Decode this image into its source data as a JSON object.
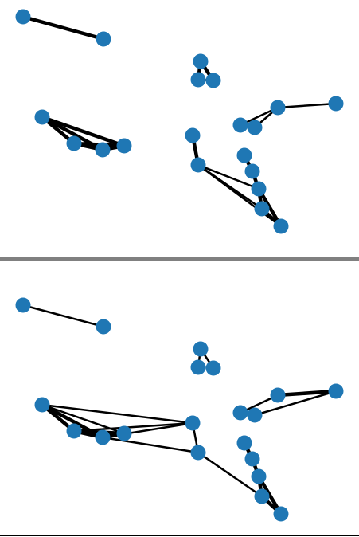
{
  "colors": {
    "background": "#ffffff",
    "node": "#1f77b4",
    "edge": "#000000",
    "separator": "#808080",
    "bottom_rule": "#000000"
  },
  "panels": [
    {
      "id": "top",
      "nodes": [
        {
          "id": "a1"
        },
        {
          "id": "a2"
        },
        {
          "id": "t1"
        },
        {
          "id": "t2"
        },
        {
          "id": "t3"
        },
        {
          "id": "c1"
        },
        {
          "id": "c2"
        },
        {
          "id": "c3"
        },
        {
          "id": "c4"
        },
        {
          "id": "r1"
        },
        {
          "id": "r2"
        },
        {
          "id": "r3"
        },
        {
          "id": "r4"
        },
        {
          "id": "m1"
        },
        {
          "id": "m2"
        },
        {
          "id": "s1"
        },
        {
          "id": "s2"
        },
        {
          "id": "s3"
        },
        {
          "id": "s4"
        },
        {
          "id": "s5"
        }
      ],
      "edges": [
        {
          "from": "a1",
          "to": "a2",
          "weight": "heavy"
        },
        {
          "from": "t1",
          "to": "t2",
          "weight": "heavy"
        },
        {
          "from": "t1",
          "to": "t3",
          "weight": "heavy"
        },
        {
          "from": "t2",
          "to": "t3",
          "weight": "normal"
        },
        {
          "from": "c1",
          "to": "c2",
          "weight": "heavy"
        },
        {
          "from": "c1",
          "to": "c3",
          "weight": "heavy"
        },
        {
          "from": "c1",
          "to": "c4",
          "weight": "heavy"
        },
        {
          "from": "c2",
          "to": "c3",
          "weight": "heavy"
        },
        {
          "from": "c2",
          "to": "c4",
          "weight": "heavy"
        },
        {
          "from": "c3",
          "to": "c4",
          "weight": "heavy"
        },
        {
          "from": "r1",
          "to": "r2",
          "weight": "normal"
        },
        {
          "from": "r1",
          "to": "r3",
          "weight": "normal"
        },
        {
          "from": "r2",
          "to": "r3",
          "weight": "normal"
        },
        {
          "from": "r3",
          "to": "r4",
          "weight": "normal"
        },
        {
          "from": "m1",
          "to": "m2",
          "weight": "heavy"
        },
        {
          "from": "m2",
          "to": "s3",
          "weight": "normal"
        },
        {
          "from": "m2",
          "to": "s4",
          "weight": "normal"
        },
        {
          "from": "m2",
          "to": "s5",
          "weight": "normal"
        },
        {
          "from": "s1",
          "to": "s2",
          "weight": "heavy"
        },
        {
          "from": "s2",
          "to": "s3",
          "weight": "heavy"
        },
        {
          "from": "s3",
          "to": "s4",
          "weight": "heavy"
        },
        {
          "from": "s3",
          "to": "s5",
          "weight": "heavy"
        },
        {
          "from": "s4",
          "to": "s5",
          "weight": "heavy"
        }
      ]
    },
    {
      "id": "bottom",
      "nodes": [
        {
          "id": "a1"
        },
        {
          "id": "a2"
        },
        {
          "id": "t1"
        },
        {
          "id": "t2"
        },
        {
          "id": "t3"
        },
        {
          "id": "c1"
        },
        {
          "id": "c2"
        },
        {
          "id": "c3"
        },
        {
          "id": "c4"
        },
        {
          "id": "r1"
        },
        {
          "id": "r2"
        },
        {
          "id": "r3"
        },
        {
          "id": "r4"
        },
        {
          "id": "m1"
        },
        {
          "id": "m2"
        },
        {
          "id": "s1"
        },
        {
          "id": "s2"
        },
        {
          "id": "s3"
        },
        {
          "id": "s4"
        },
        {
          "id": "s5"
        }
      ],
      "edges": [
        {
          "from": "a1",
          "to": "a2",
          "weight": "normal"
        },
        {
          "from": "t1",
          "to": "t2",
          "weight": "normal"
        },
        {
          "from": "t1",
          "to": "t3",
          "weight": "normal"
        },
        {
          "from": "c1",
          "to": "c2",
          "weight": "heavy"
        },
        {
          "from": "c1",
          "to": "c3",
          "weight": "heavy"
        },
        {
          "from": "c1",
          "to": "c4",
          "weight": "normal"
        },
        {
          "from": "c2",
          "to": "c3",
          "weight": "heavy"
        },
        {
          "from": "c2",
          "to": "c4",
          "weight": "heavy"
        },
        {
          "from": "c3",
          "to": "c4",
          "weight": "heavy"
        },
        {
          "from": "c1",
          "to": "m1",
          "weight": "normal"
        },
        {
          "from": "c2",
          "to": "m1",
          "weight": "normal"
        },
        {
          "from": "c3",
          "to": "m1",
          "weight": "normal"
        },
        {
          "from": "c3",
          "to": "m2",
          "weight": "normal"
        },
        {
          "from": "m1",
          "to": "m2",
          "weight": "normal"
        },
        {
          "from": "m2",
          "to": "s4",
          "weight": "normal"
        },
        {
          "from": "r1",
          "to": "r3",
          "weight": "normal"
        },
        {
          "from": "r2",
          "to": "r4",
          "weight": "normal"
        },
        {
          "from": "r3",
          "to": "r4",
          "weight": "heavy"
        },
        {
          "from": "s1",
          "to": "s2",
          "weight": "heavy"
        },
        {
          "from": "s2",
          "to": "s3",
          "weight": "heavy"
        },
        {
          "from": "s3",
          "to": "s4",
          "weight": "heavy"
        },
        {
          "from": "s3",
          "to": "s5",
          "weight": "heavy"
        },
        {
          "from": "s4",
          "to": "s5",
          "weight": "heavy"
        }
      ]
    }
  ]
}
